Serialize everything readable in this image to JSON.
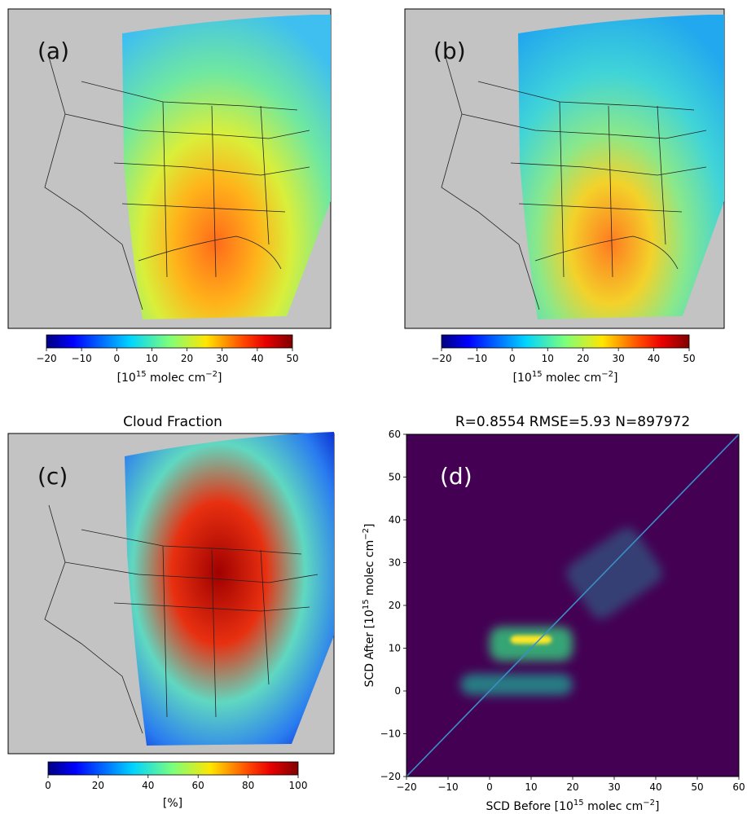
{
  "chart_data": [
    {
      "type": "heatmap",
      "panel_label": "(a)",
      "title": "",
      "colorbar": {
        "label_base": "[10",
        "label_exp": "15",
        "label_mid": " molec cm",
        "label_exp2": "−2",
        "label_end": "]",
        "range": [
          -20,
          50
        ],
        "ticks": [
          "−20",
          "−10",
          "0",
          "10",
          "20",
          "30",
          "40",
          "50"
        ],
        "colormap": "jet"
      }
    },
    {
      "type": "heatmap",
      "panel_label": "(b)",
      "title": "",
      "colorbar": {
        "label_base": "[10",
        "label_exp": "15",
        "label_mid": " molec cm",
        "label_exp2": "−2",
        "label_end": "]",
        "range": [
          -20,
          50
        ],
        "ticks": [
          "−20",
          "−10",
          "0",
          "10",
          "20",
          "30",
          "40",
          "50"
        ],
        "colormap": "jet"
      }
    },
    {
      "type": "heatmap",
      "panel_label": "(c)",
      "title": "Cloud Fraction",
      "colorbar": {
        "label": "[%]",
        "range": [
          0,
          100
        ],
        "ticks": [
          "0",
          "20",
          "40",
          "60",
          "80",
          "100"
        ],
        "colormap": "jet"
      }
    },
    {
      "type": "heatmap",
      "panel_label": "(d)",
      "title": "R=0.8554 RMSE=5.93 N=897972",
      "xlabel_base": "SCD Before [10",
      "xlabel_exp": "15",
      "xlabel_mid": " molec cm",
      "xlabel_exp2": "−2",
      "xlabel_end": "]",
      "ylabel_base": "SCD After [10",
      "ylabel_exp": "15",
      "ylabel_mid": " molec cm",
      "ylabel_exp2": "−2",
      "ylabel_end": "]",
      "xlim": [
        -20,
        60
      ],
      "ylim": [
        -20,
        60
      ],
      "xticks": [
        -20,
        -10,
        0,
        10,
        20,
        30,
        40,
        50,
        60
      ],
      "yticks": [
        -20,
        -10,
        0,
        10,
        20,
        30,
        40,
        50,
        60
      ],
      "colormap": "viridis",
      "reference_line": {
        "from": [
          -20,
          -20
        ],
        "to": [
          60,
          60
        ],
        "color": "#3a8fc8"
      },
      "density_features": [
        {
          "x": [
            5,
            15
          ],
          "y": [
            11,
            13
          ],
          "level": "max"
        },
        {
          "x": [
            0,
            20
          ],
          "y": [
            7,
            15
          ],
          "level": "high"
        },
        {
          "x": [
            -7,
            20
          ],
          "y": [
            -1,
            4
          ],
          "level": "medium"
        },
        {
          "x": [
            20,
            40
          ],
          "y": [
            20,
            35
          ],
          "level": "low"
        }
      ]
    }
  ]
}
